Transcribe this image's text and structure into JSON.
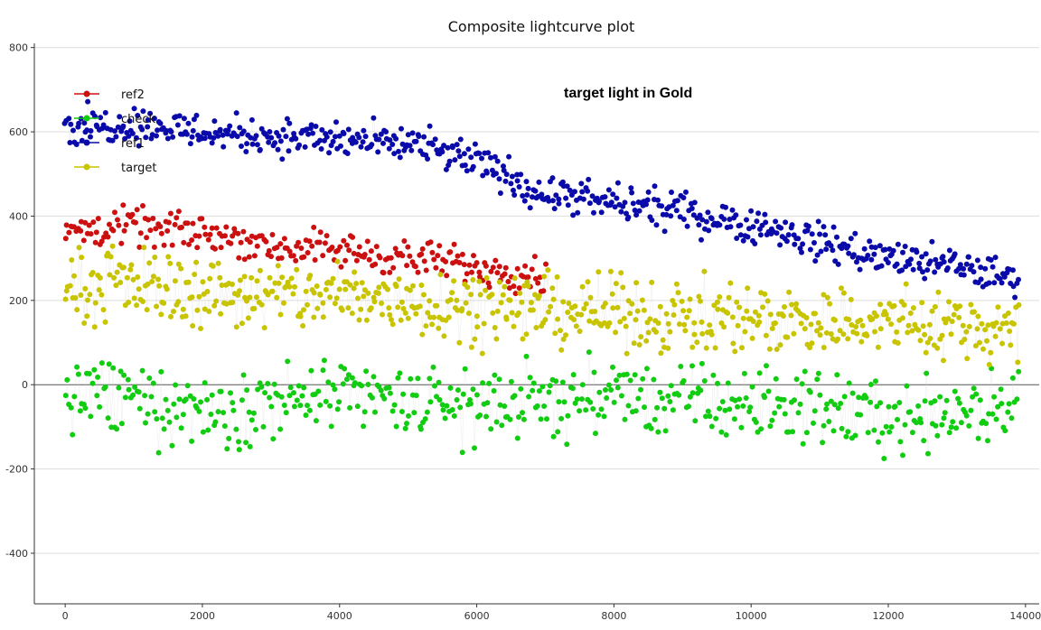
{
  "chart_data": {
    "type": "scatter",
    "title": "Composite lightcurve plot",
    "annotation": "target light in Gold",
    "xlabel": "",
    "ylabel": "",
    "xlim": [
      -450,
      14200
    ],
    "ylim": [
      -520,
      810
    ],
    "x_ticks": [
      0,
      2000,
      4000,
      6000,
      8000,
      10000,
      12000,
      14000
    ],
    "y_ticks": [
      -400,
      -200,
      0,
      200,
      400,
      600,
      800
    ],
    "grid": "horizontal",
    "legend_position": "top-left",
    "connector_color": "#d2d2d2",
    "series": [
      {
        "name": "ref2",
        "color": "#cc1010",
        "x": [
          0,
          500,
          1000,
          1500,
          2000,
          2500,
          3000,
          3500,
          4000,
          4500,
          5000,
          5500,
          6000,
          6500,
          7000
        ],
        "y": [
          360,
          370,
          375,
          365,
          360,
          350,
          330,
          320,
          320,
          310,
          300,
          290,
          280,
          270,
          260
        ],
        "spread": 50
      },
      {
        "name": "check",
        "color": "#11cc11",
        "x": [
          0,
          1000,
          2000,
          3000,
          4000,
          5000,
          6000,
          7000,
          8000,
          9000,
          10000,
          11000,
          12000,
          13000,
          13900
        ],
        "y": [
          -20,
          -40,
          -60,
          -40,
          -30,
          -40,
          -50,
          -40,
          -30,
          -40,
          -50,
          -50,
          -80,
          -60,
          -40
        ],
        "spread": 100
      },
      {
        "name": "ref1",
        "color": "#0a0aaa",
        "x": [
          0,
          1000,
          2000,
          3000,
          4000,
          5000,
          6000,
          7000,
          8000,
          9000,
          10000,
          11000,
          12000,
          13000,
          13900
        ],
        "y": [
          610,
          620,
          600,
          590,
          580,
          570,
          530,
          450,
          430,
          410,
          380,
          340,
          300,
          280,
          250
        ],
        "spread": 50
      },
      {
        "name": "target",
        "color": "#c8c400",
        "x": [
          0,
          1000,
          2000,
          3000,
          4000,
          5000,
          6000,
          7000,
          8000,
          9000,
          10000,
          11000,
          12000,
          13000,
          13900
        ],
        "y": [
          230,
          240,
          220,
          210,
          210,
          200,
          190,
          180,
          170,
          160,
          160,
          150,
          150,
          140,
          130
        ],
        "spread": 95
      }
    ]
  }
}
